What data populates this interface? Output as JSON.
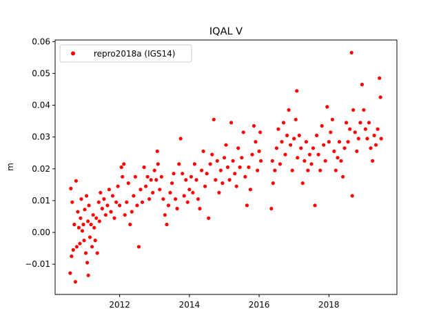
{
  "chart_data": {
    "type": "scatter",
    "title": "IQAL V",
    "xlabel": "",
    "ylabel": "m",
    "xlim": [
      2010.15,
      2019.95
    ],
    "ylim": [
      -0.0195,
      0.0605
    ],
    "xticks": [
      2012,
      2014,
      2016,
      2018
    ],
    "xtick_labels": [
      "2012",
      "2014",
      "2016",
      "2018"
    ],
    "yticks": [
      -0.01,
      0.0,
      0.01,
      0.02,
      0.03,
      0.04,
      0.05,
      0.06
    ],
    "ytick_labels": [
      "−0.01",
      "0.00",
      "0.01",
      "0.02",
      "0.03",
      "0.04",
      "0.05",
      "0.06"
    ],
    "grid": false,
    "legend_position": "top-left",
    "series": [
      {
        "name": "repro2018a (IGS14)",
        "color": "#ff0000",
        "marker": "circle",
        "points": [
          [
            2010.58,
            -0.0128
          ],
          [
            2010.6,
            0.0138
          ],
          [
            2010.62,
            -0.0075
          ],
          [
            2010.64,
            0.0095
          ],
          [
            2010.67,
            -0.0055
          ],
          [
            2010.7,
            0.0025
          ],
          [
            2010.73,
            -0.0155
          ],
          [
            2010.75,
            0.0162
          ],
          [
            2010.77,
            -0.0045
          ],
          [
            2010.8,
            0.0065
          ],
          [
            2010.83,
            0.0015
          ],
          [
            2010.86,
            -0.0035
          ],
          [
            2010.88,
            0.0045
          ],
          [
            2010.9,
            0.0105
          ],
          [
            2010.93,
            0.0005
          ],
          [
            2010.96,
            0.0025
          ],
          [
            2010.98,
            -0.0025
          ],
          [
            2011.0,
            0.0072
          ],
          [
            2011.03,
            -0.0065
          ],
          [
            2011.05,
            0.0115
          ],
          [
            2011.07,
            -0.0095
          ],
          [
            2011.09,
            0.0035
          ],
          [
            2011.1,
            -0.0135
          ],
          [
            2011.12,
            0.0085
          ],
          [
            2011.15,
            -0.0015
          ],
          [
            2011.18,
            0.0025
          ],
          [
            2011.21,
            -0.0045
          ],
          [
            2011.24,
            0.0055
          ],
          [
            2011.27,
            0.0015
          ],
          [
            2011.3,
            -0.0025
          ],
          [
            2011.33,
            0.0045
          ],
          [
            2011.36,
            -0.0065
          ],
          [
            2011.4,
            0.0095
          ],
          [
            2011.42,
            0.0035
          ],
          [
            2011.45,
            0.0125
          ],
          [
            2011.5,
            0.0075
          ],
          [
            2011.55,
            0.0105
          ],
          [
            2011.6,
            0.0055
          ],
          [
            2011.65,
            0.0085
          ],
          [
            2011.7,
            0.0135
          ],
          [
            2011.75,
            0.0065
          ],
          [
            2011.8,
            0.0115
          ],
          [
            2011.85,
            0.0045
          ],
          [
            2011.9,
            0.0095
          ],
          [
            2011.95,
            0.0145
          ],
          [
            2012.0,
            0.0085
          ],
          [
            2012.05,
            0.0205
          ],
          [
            2012.08,
            0.0175
          ],
          [
            2012.12,
            0.0215
          ],
          [
            2012.15,
            0.0055
          ],
          [
            2012.2,
            0.0095
          ],
          [
            2012.25,
            0.0155
          ],
          [
            2012.3,
            0.0025
          ],
          [
            2012.35,
            0.0065
          ],
          [
            2012.4,
            0.0115
          ],
          [
            2012.45,
            0.0175
          ],
          [
            2012.5,
            0.0085
          ],
          [
            2012.55,
            -0.0045
          ],
          [
            2012.6,
            0.0135
          ],
          [
            2012.65,
            0.0095
          ],
          [
            2012.7,
            0.0205
          ],
          [
            2012.75,
            0.0145
          ],
          [
            2012.8,
            0.0175
          ],
          [
            2012.85,
            0.0105
          ],
          [
            2012.9,
            0.0165
          ],
          [
            2012.95,
            0.0125
          ],
          [
            2013.0,
            0.0195
          ],
          [
            2013.05,
            0.0165
          ],
          [
            2013.08,
            0.0255
          ],
          [
            2013.1,
            0.0215
          ],
          [
            2013.15,
            0.0135
          ],
          [
            2013.2,
            0.0175
          ],
          [
            2013.25,
            0.0105
          ],
          [
            2013.3,
            0.0055
          ],
          [
            2013.35,
            0.0025
          ],
          [
            2013.4,
            0.0085
          ],
          [
            2013.45,
            0.0125
          ],
          [
            2013.5,
            0.0155
          ],
          [
            2013.55,
            0.0185
          ],
          [
            2013.6,
            0.0105
          ],
          [
            2013.65,
            0.0075
          ],
          [
            2013.7,
            0.0215
          ],
          [
            2013.75,
            0.0295
          ],
          [
            2013.8,
            0.0185
          ],
          [
            2013.85,
            0.0115
          ],
          [
            2013.9,
            0.0165
          ],
          [
            2013.95,
            0.0095
          ],
          [
            2014.0,
            0.0135
          ],
          [
            2014.05,
            0.0175
          ],
          [
            2014.1,
            0.0125
          ],
          [
            2014.15,
            0.0215
          ],
          [
            2014.2,
            0.0165
          ],
          [
            2014.25,
            0.0105
          ],
          [
            2014.3,
            0.0075
          ],
          [
            2014.35,
            0.0195
          ],
          [
            2014.4,
            0.0255
          ],
          [
            2014.45,
            0.0145
          ],
          [
            2014.5,
            0.0185
          ],
          [
            2014.55,
            0.0045
          ],
          [
            2014.6,
            0.0215
          ],
          [
            2014.65,
            0.0245
          ],
          [
            2014.7,
            0.0355
          ],
          [
            2014.75,
            0.0165
          ],
          [
            2014.8,
            0.0225
          ],
          [
            2014.85,
            0.0125
          ],
          [
            2014.9,
            0.0195
          ],
          [
            2014.95,
            0.0155
          ],
          [
            2015.0,
            0.0235
          ],
          [
            2015.05,
            0.0275
          ],
          [
            2015.1,
            0.0205
          ],
          [
            2015.15,
            0.0165
          ],
          [
            2015.2,
            0.0345
          ],
          [
            2015.25,
            0.0225
          ],
          [
            2015.3,
            0.0185
          ],
          [
            2015.35,
            0.0145
          ],
          [
            2015.4,
            0.0265
          ],
          [
            2015.45,
            0.0205
          ],
          [
            2015.5,
            0.0235
          ],
          [
            2015.55,
            0.0315
          ],
          [
            2015.6,
            0.0175
          ],
          [
            2015.65,
            0.0085
          ],
          [
            2015.7,
            0.0205
          ],
          [
            2015.75,
            0.0135
          ],
          [
            2015.8,
            0.0245
          ],
          [
            2015.85,
            0.0335
          ],
          [
            2015.9,
            0.0285
          ],
          [
            2015.95,
            0.0195
          ],
          [
            2016.0,
            0.0255
          ],
          [
            2016.03,
            0.0315
          ],
          [
            2016.05,
            0.0225
          ],
          [
            2016.35,
            0.0075
          ],
          [
            2016.38,
            0.0225
          ],
          [
            2016.4,
            0.0155
          ],
          [
            2016.45,
            0.0195
          ],
          [
            2016.5,
            0.0265
          ],
          [
            2016.55,
            0.0325
          ],
          [
            2016.6,
            0.0215
          ],
          [
            2016.65,
            0.0285
          ],
          [
            2016.7,
            0.0345
          ],
          [
            2016.75,
            0.0245
          ],
          [
            2016.8,
            0.0305
          ],
          [
            2016.85,
            0.0385
          ],
          [
            2016.9,
            0.0275
          ],
          [
            2016.95,
            0.0195
          ],
          [
            2017.0,
            0.0295
          ],
          [
            2017.05,
            0.0355
          ],
          [
            2017.08,
            0.0445
          ],
          [
            2017.1,
            0.0235
          ],
          [
            2017.15,
            0.0305
          ],
          [
            2017.2,
            0.0265
          ],
          [
            2017.25,
            0.0155
          ],
          [
            2017.3,
            0.0225
          ],
          [
            2017.35,
            0.0285
          ],
          [
            2017.4,
            0.0195
          ],
          [
            2017.45,
            0.0245
          ],
          [
            2017.5,
            0.0215
          ],
          [
            2017.55,
            0.0265
          ],
          [
            2017.6,
            0.0085
          ],
          [
            2017.65,
            0.0305
          ],
          [
            2017.7,
            0.0245
          ],
          [
            2017.75,
            0.0195
          ],
          [
            2017.8,
            0.0335
          ],
          [
            2017.85,
            0.0275
          ],
          [
            2017.9,
            0.0225
          ],
          [
            2017.95,
            0.0395
          ],
          [
            2018.0,
            0.0285
          ],
          [
            2018.05,
            0.0315
          ],
          [
            2018.1,
            0.0355
          ],
          [
            2018.15,
            0.0255
          ],
          [
            2018.2,
            0.0195
          ],
          [
            2018.25,
            0.0235
          ],
          [
            2018.3,
            0.0285
          ],
          [
            2018.35,
            0.0225
          ],
          [
            2018.4,
            0.0175
          ],
          [
            2018.45,
            0.0265
          ],
          [
            2018.5,
            0.0345
          ],
          [
            2018.55,
            0.0285
          ],
          [
            2018.6,
            0.0325
          ],
          [
            2018.65,
            0.0565
          ],
          [
            2018.67,
            0.0115
          ],
          [
            2018.7,
            0.0385
          ],
          [
            2018.75,
            0.0315
          ],
          [
            2018.8,
            0.0255
          ],
          [
            2018.85,
            0.0295
          ],
          [
            2018.9,
            0.0345
          ],
          [
            2018.95,
            0.0465
          ],
          [
            2019.0,
            0.0385
          ],
          [
            2019.05,
            0.0325
          ],
          [
            2019.1,
            0.0295
          ],
          [
            2019.15,
            0.0345
          ],
          [
            2019.2,
            0.0265
          ],
          [
            2019.25,
            0.0225
          ],
          [
            2019.3,
            0.0305
          ],
          [
            2019.35,
            0.0275
          ],
          [
            2019.4,
            0.0325
          ],
          [
            2019.45,
            0.0485
          ],
          [
            2019.48,
            0.0425
          ],
          [
            2019.5,
            0.0295
          ]
        ]
      }
    ]
  }
}
